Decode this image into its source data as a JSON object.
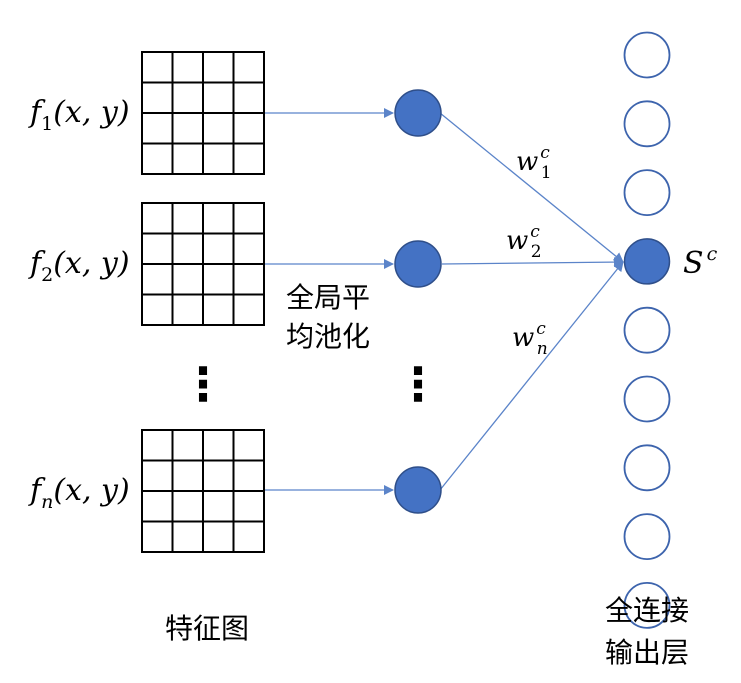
{
  "colors": {
    "node_fill": "#4472c4",
    "output_stroke": "#3d64ad",
    "arrow": "#5b84c9",
    "grid_line": "#000000",
    "text": "#000000"
  },
  "feature_maps": [
    {
      "func": "f",
      "sub": "1",
      "args": "(x, y)",
      "rows": 4,
      "cols": 4
    },
    {
      "func": "f",
      "sub": "2",
      "args": "(x, y)",
      "rows": 4,
      "cols": 4
    },
    {
      "func": "f",
      "sub": "n",
      "args": "(x, y)",
      "rows": 4,
      "cols": 4
    }
  ],
  "ellipsis": "⋮",
  "labels": {
    "feature_map": "特征图",
    "gap_line1": "全局平",
    "gap_line2": "均池化",
    "fc_line1": "全连接",
    "fc_line2": "输出层"
  },
  "weights": [
    {
      "base": "w",
      "sup": "c",
      "sub": "1"
    },
    {
      "base": "w",
      "sup": "c",
      "sub": "2"
    },
    {
      "base": "w",
      "sup": "c",
      "sub": "n"
    }
  ],
  "output_label": {
    "base": "S",
    "sup": "c"
  },
  "output_nodes": {
    "count": 9,
    "active_index": 3
  }
}
